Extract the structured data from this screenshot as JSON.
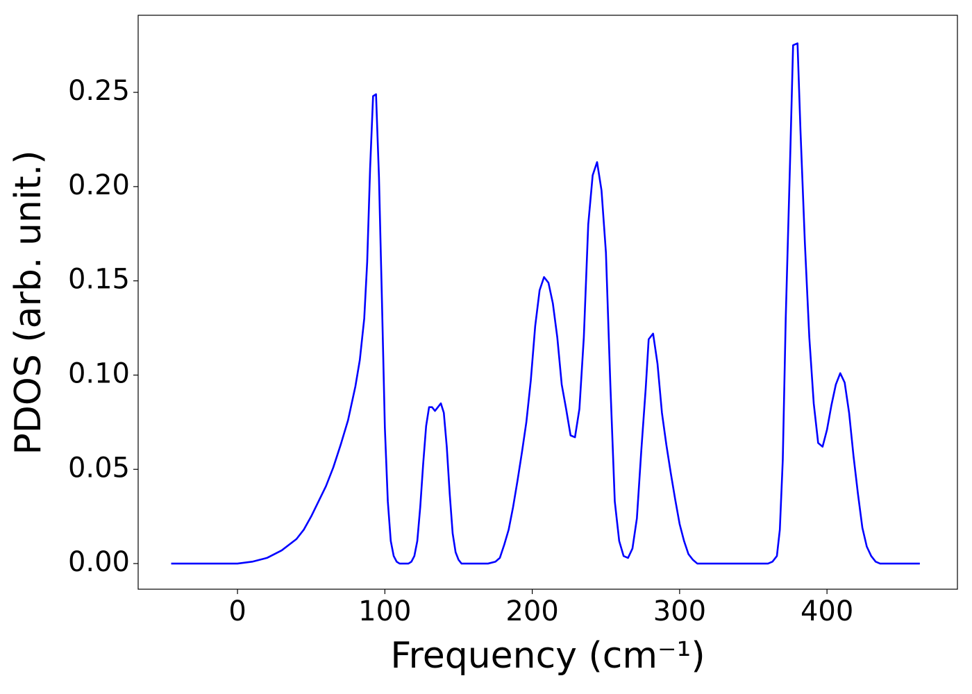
{
  "chart_data": {
    "type": "line",
    "x_label": "Frequency (cm⁻¹)",
    "y_label": "PDOS (arb. unit.)",
    "color": "#0000ff",
    "xlim": [
      -67.4,
      488.5
    ],
    "ylim": [
      -0.0136,
      0.2909
    ],
    "xticks": [
      0,
      100,
      200,
      300,
      400
    ],
    "yticks": [
      {
        "value": 0,
        "label": "0.00"
      },
      {
        "value": 0.05,
        "label": "0.05"
      },
      {
        "value": 0.1,
        "label": "0.10"
      },
      {
        "value": 0.15,
        "label": "0.15"
      },
      {
        "value": 0.2,
        "label": "0.20"
      },
      {
        "value": 0.25,
        "label": "0.25"
      }
    ],
    "x": [
      -45,
      0,
      10,
      20,
      30,
      40,
      45,
      50,
      55,
      60,
      65,
      70,
      75,
      80,
      83,
      86,
      88,
      90,
      92,
      94,
      96,
      98,
      100,
      102,
      104,
      106,
      108,
      110,
      116,
      118,
      120,
      122,
      124,
      126,
      128,
      130,
      132,
      134,
      136,
      138,
      140,
      142,
      144,
      146,
      148,
      150,
      152,
      170,
      175,
      178,
      181,
      184,
      187,
      190,
      193,
      196,
      199,
      202,
      205,
      208,
      211,
      214,
      217,
      220,
      223,
      226,
      229,
      232,
      235,
      238,
      241,
      244,
      247,
      250,
      253,
      256,
      259,
      262,
      265,
      268,
      271,
      274,
      277,
      279,
      282,
      285,
      288,
      291,
      294,
      297,
      300,
      303,
      306,
      309,
      312,
      360,
      363,
      366,
      368,
      370,
      372,
      375,
      377,
      380,
      382,
      385,
      388,
      391,
      394,
      397,
      400,
      403,
      406,
      409,
      412,
      415,
      418,
      421,
      424,
      427,
      430,
      433,
      436,
      463
    ],
    "values": [
      0,
      0,
      0.001,
      0.003,
      0.007,
      0.013,
      0.018,
      0.025,
      0.033,
      0.041,
      0.051,
      0.063,
      0.076,
      0.094,
      0.108,
      0.13,
      0.16,
      0.21,
      0.248,
      0.249,
      0.205,
      0.14,
      0.072,
      0.033,
      0.012,
      0.004,
      0.001,
      0,
      0,
      0.001,
      0.004,
      0.012,
      0.03,
      0.053,
      0.073,
      0.083,
      0.083,
      0.081,
      0.083,
      0.085,
      0.08,
      0.062,
      0.037,
      0.016,
      0.006,
      0.002,
      0,
      0,
      0.001,
      0.003,
      0.01,
      0.018,
      0.03,
      0.044,
      0.059,
      0.075,
      0.097,
      0.126,
      0.145,
      0.152,
      0.149,
      0.138,
      0.12,
      0.095,
      0.082,
      0.068,
      0.067,
      0.082,
      0.12,
      0.18,
      0.206,
      0.213,
      0.198,
      0.165,
      0.095,
      0.033,
      0.012,
      0.004,
      0.003,
      0.008,
      0.024,
      0.06,
      0.093,
      0.119,
      0.122,
      0.106,
      0.08,
      0.063,
      0.048,
      0.034,
      0.021,
      0.012,
      0.005,
      0.002,
      0,
      0,
      0.001,
      0.004,
      0.018,
      0.055,
      0.13,
      0.215,
      0.275,
      0.276,
      0.23,
      0.17,
      0.12,
      0.085,
      0.064,
      0.062,
      0.071,
      0.084,
      0.095,
      0.101,
      0.096,
      0.08,
      0.057,
      0.037,
      0.019,
      0.009,
      0.004,
      0.001,
      0,
      0
    ]
  }
}
